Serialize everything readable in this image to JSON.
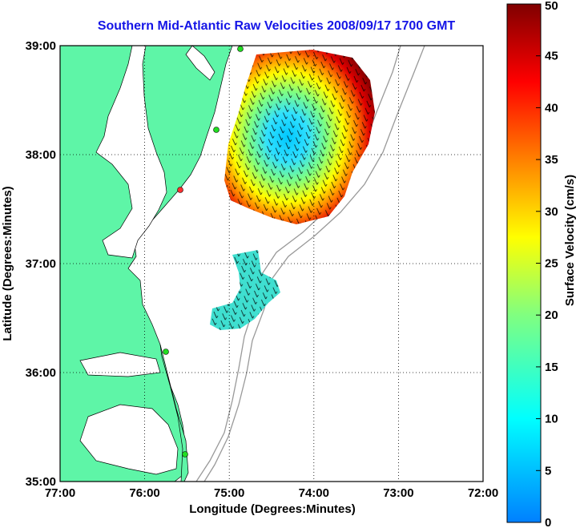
{
  "title": "Southern Mid-Atlantic Raw Velocities 2008/09/17 1700 GMT",
  "map": {
    "xlabel": "Longitude (Degrees:Minutes)",
    "ylabel": "Latitude (Degrees:Minutes)",
    "x_ticks": [
      "77:00",
      "76:00",
      "75:00",
      "74:00",
      "73:00",
      "72:00"
    ],
    "y_ticks": [
      "39:00",
      "38:00",
      "37:00",
      "36:00",
      "35:00"
    ],
    "lon_range": [
      -77,
      -72
    ],
    "lat_range": [
      35,
      39
    ],
    "grid": "dotted",
    "land_color": "#5ef5a7",
    "isobath_color": "#999999",
    "station_color": "#22dd22"
  },
  "colorbar": {
    "label": "Surface Velocity (cm/s)",
    "ticks": [
      "0",
      "5",
      "10",
      "15",
      "20",
      "25",
      "30",
      "35",
      "40",
      "45",
      "50"
    ],
    "range": [
      0,
      50
    ],
    "colors": [
      "#0080ff",
      "#00ffff",
      "#80ff80",
      "#ffff00",
      "#ff8000",
      "#ff0000",
      "#800000"
    ]
  }
}
